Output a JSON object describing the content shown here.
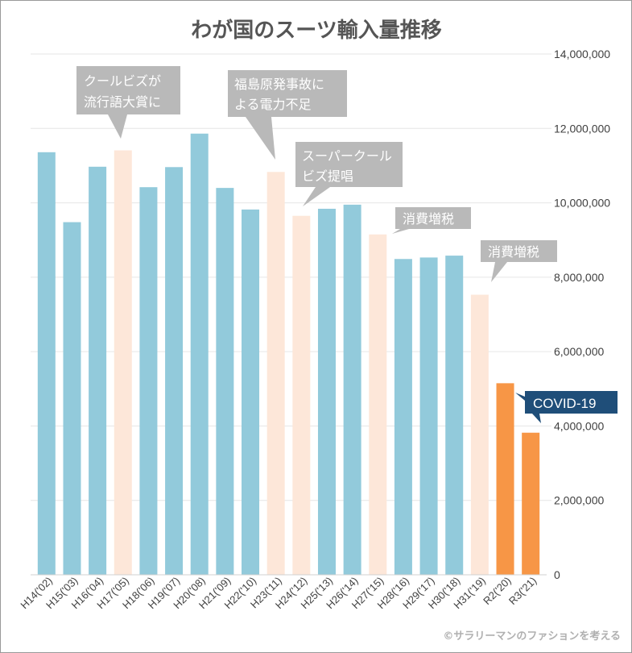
{
  "chart_data": {
    "type": "bar",
    "title": "わが国のスーツ輸入量推移",
    "categories": [
      "H14('02)",
      "H15('03)",
      "H16('04)",
      "H17('05)",
      "H18('06)",
      "H19('07)",
      "H20('08)",
      "H21('09)",
      "H22('10)",
      "H23('11)",
      "H24('12)",
      "H25('13)",
      "H26('14)",
      "H27('15)",
      "H28('16)",
      "H29('17)",
      "H30('18)",
      "H31('19)",
      "R2('20)",
      "R3('21)"
    ],
    "values": [
      11360000,
      9480000,
      10970000,
      11410000,
      10420000,
      10960000,
      11860000,
      10400000,
      9820000,
      10830000,
      9650000,
      9840000,
      9950000,
      9150000,
      8490000,
      8530000,
      8580000,
      7530000,
      5150000,
      3820000
    ],
    "bar_kinds": [
      "normal",
      "normal",
      "normal",
      "event",
      "normal",
      "normal",
      "normal",
      "normal",
      "normal",
      "event",
      "event",
      "normal",
      "normal",
      "event",
      "normal",
      "normal",
      "normal",
      "event",
      "covid",
      "covid"
    ],
    "colors": {
      "normal": "#92cadb",
      "event": "#fde7d9",
      "covid": "#f79646",
      "callout": "#b9b9b9",
      "covid_callout": "#1f4e79",
      "grid": "#e6e6e6"
    },
    "ylim": [
      0,
      14000000
    ],
    "yticks": [
      "0",
      "2,000,000",
      "4,000,000",
      "6,000,000",
      "8,000,000",
      "10,000,000",
      "12,000,000",
      "14,000,000"
    ],
    "grid": true,
    "annotations": [
      {
        "lines": [
          "クールビズが",
          "流行語大賞に"
        ],
        "category": "H17('05)"
      },
      {
        "lines": [
          "福島原発事故に",
          "よる電力不足"
        ],
        "category": "H23('11)"
      },
      {
        "lines": [
          "スーパークール",
          "ビズ提唱"
        ],
        "category": "H24('12)"
      },
      {
        "lines": [
          "消費増税"
        ],
        "category": "H27('15)"
      },
      {
        "lines": [
          "消費増税"
        ],
        "category": "H31('19)"
      },
      {
        "lines": [
          "COVID-19"
        ],
        "category": "R2('20)"
      }
    ],
    "credit": "©サラリーマンのファションを考える"
  }
}
